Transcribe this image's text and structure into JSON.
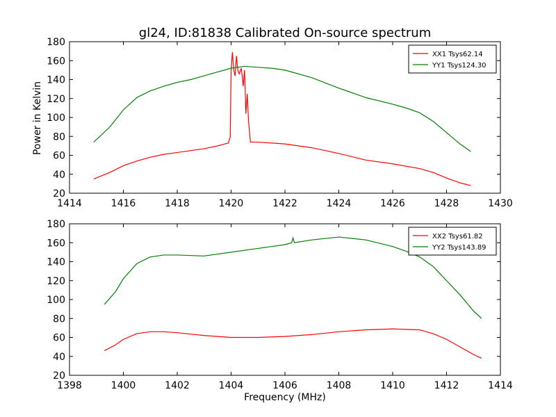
{
  "chart_data": {
    "title": "gl24, ID:81838 Calibrated On-source spectrum",
    "ylabel": "Power in Kelvin",
    "xlabel": "Frequency (MHz)",
    "colors": {
      "xx": "#ff0000",
      "yy": "#008000"
    },
    "panels": [
      {
        "type": "line",
        "xlim": [
          1414,
          1430
        ],
        "ylim": [
          20,
          180
        ],
        "xticks": [
          1414,
          1416,
          1418,
          1420,
          1422,
          1424,
          1426,
          1428,
          1430
        ],
        "yticks": [
          20,
          40,
          60,
          80,
          100,
          120,
          140,
          160,
          180
        ],
        "legend_position": "top-right",
        "series": [
          {
            "name": "XX1 Tsys62.14",
            "color": "#ff0000",
            "points": [
              [
                1414.9,
                35
              ],
              [
                1415.5,
                42
              ],
              [
                1416,
                49
              ],
              [
                1416.5,
                54
              ],
              [
                1417,
                58
              ],
              [
                1417.5,
                61
              ],
              [
                1418,
                63
              ],
              [
                1418.5,
                65
              ],
              [
                1419,
                67
              ],
              [
                1419.5,
                70
              ],
              [
                1419.9,
                73
              ],
              [
                1419.97,
                80
              ],
              [
                1420.0,
                150
              ],
              [
                1420.05,
                169
              ],
              [
                1420.1,
                150
              ],
              [
                1420.15,
                144
              ],
              [
                1420.2,
                165
              ],
              [
                1420.25,
                150
              ],
              [
                1420.3,
                146
              ],
              [
                1420.38,
                152
              ],
              [
                1420.45,
                133
              ],
              [
                1420.5,
                150
              ],
              [
                1420.55,
                104
              ],
              [
                1420.6,
                125
              ],
              [
                1420.65,
                95
              ],
              [
                1420.72,
                74
              ],
              [
                1421,
                74
              ],
              [
                1422,
                72
              ],
              [
                1423,
                68
              ],
              [
                1424,
                62
              ],
              [
                1425,
                55
              ],
              [
                1426,
                51
              ],
              [
                1427,
                46
              ],
              [
                1427.5,
                42
              ],
              [
                1428,
                36
              ],
              [
                1428.5,
                31
              ],
              [
                1428.9,
                28
              ]
            ]
          },
          {
            "name": "YY1 Tsys124.30",
            "color": "#008000",
            "points": [
              [
                1414.9,
                74
              ],
              [
                1415.5,
                90
              ],
              [
                1416,
                108
              ],
              [
                1416.5,
                121
              ],
              [
                1417,
                128
              ],
              [
                1417.5,
                133
              ],
              [
                1418,
                137
              ],
              [
                1418.5,
                140
              ],
              [
                1419,
                144
              ],
              [
                1419.5,
                148
              ],
              [
                1420,
                152
              ],
              [
                1420.5,
                154
              ],
              [
                1421,
                153
              ],
              [
                1421.5,
                152
              ],
              [
                1422,
                150
              ],
              [
                1423,
                142
              ],
              [
                1424,
                131
              ],
              [
                1425,
                121
              ],
              [
                1426,
                114
              ],
              [
                1426.5,
                110
              ],
              [
                1427,
                105
              ],
              [
                1427.5,
                96
              ],
              [
                1428,
                84
              ],
              [
                1428.5,
                72
              ],
              [
                1428.9,
                64
              ]
            ]
          }
        ]
      },
      {
        "type": "line",
        "xlim": [
          1398,
          1414
        ],
        "ylim": [
          20,
          180
        ],
        "xticks": [
          1398,
          1400,
          1402,
          1404,
          1406,
          1408,
          1410,
          1412,
          1414
        ],
        "yticks": [
          20,
          40,
          60,
          80,
          100,
          120,
          140,
          160,
          180
        ],
        "legend_position": "top-right",
        "series": [
          {
            "name": "XX2 Tsys61.82",
            "color": "#ff0000",
            "points": [
              [
                1399.3,
                46
              ],
              [
                1399.7,
                52
              ],
              [
                1400,
                58
              ],
              [
                1400.5,
                64
              ],
              [
                1401,
                66
              ],
              [
                1401.5,
                66
              ],
              [
                1402,
                65
              ],
              [
                1403,
                62
              ],
              [
                1404,
                60
              ],
              [
                1405,
                60
              ],
              [
                1406,
                61
              ],
              [
                1407,
                63
              ],
              [
                1408,
                66
              ],
              [
                1409,
                68
              ],
              [
                1410,
                69
              ],
              [
                1411,
                68
              ],
              [
                1411.5,
                64
              ],
              [
                1412,
                58
              ],
              [
                1412.5,
                50
              ],
              [
                1413,
                42
              ],
              [
                1413.3,
                38
              ]
            ]
          },
          {
            "name": "YY2 Tsys143.89",
            "color": "#008000",
            "points": [
              [
                1399.3,
                95
              ],
              [
                1399.7,
                108
              ],
              [
                1400,
                122
              ],
              [
                1400.5,
                138
              ],
              [
                1401,
                145
              ],
              [
                1401.5,
                147
              ],
              [
                1402,
                147
              ],
              [
                1403,
                146
              ],
              [
                1404,
                150
              ],
              [
                1405,
                154
              ],
              [
                1406,
                158
              ],
              [
                1406.25,
                160
              ],
              [
                1406.3,
                165
              ],
              [
                1406.35,
                160
              ],
              [
                1407,
                163
              ],
              [
                1408,
                166
              ],
              [
                1409,
                163
              ],
              [
                1410,
                156
              ],
              [
                1410.5,
                151
              ],
              [
                1411,
                145
              ],
              [
                1411.5,
                135
              ],
              [
                1412,
                120
              ],
              [
                1412.5,
                105
              ],
              [
                1413,
                88
              ],
              [
                1413.3,
                80
              ]
            ]
          }
        ]
      }
    ]
  }
}
